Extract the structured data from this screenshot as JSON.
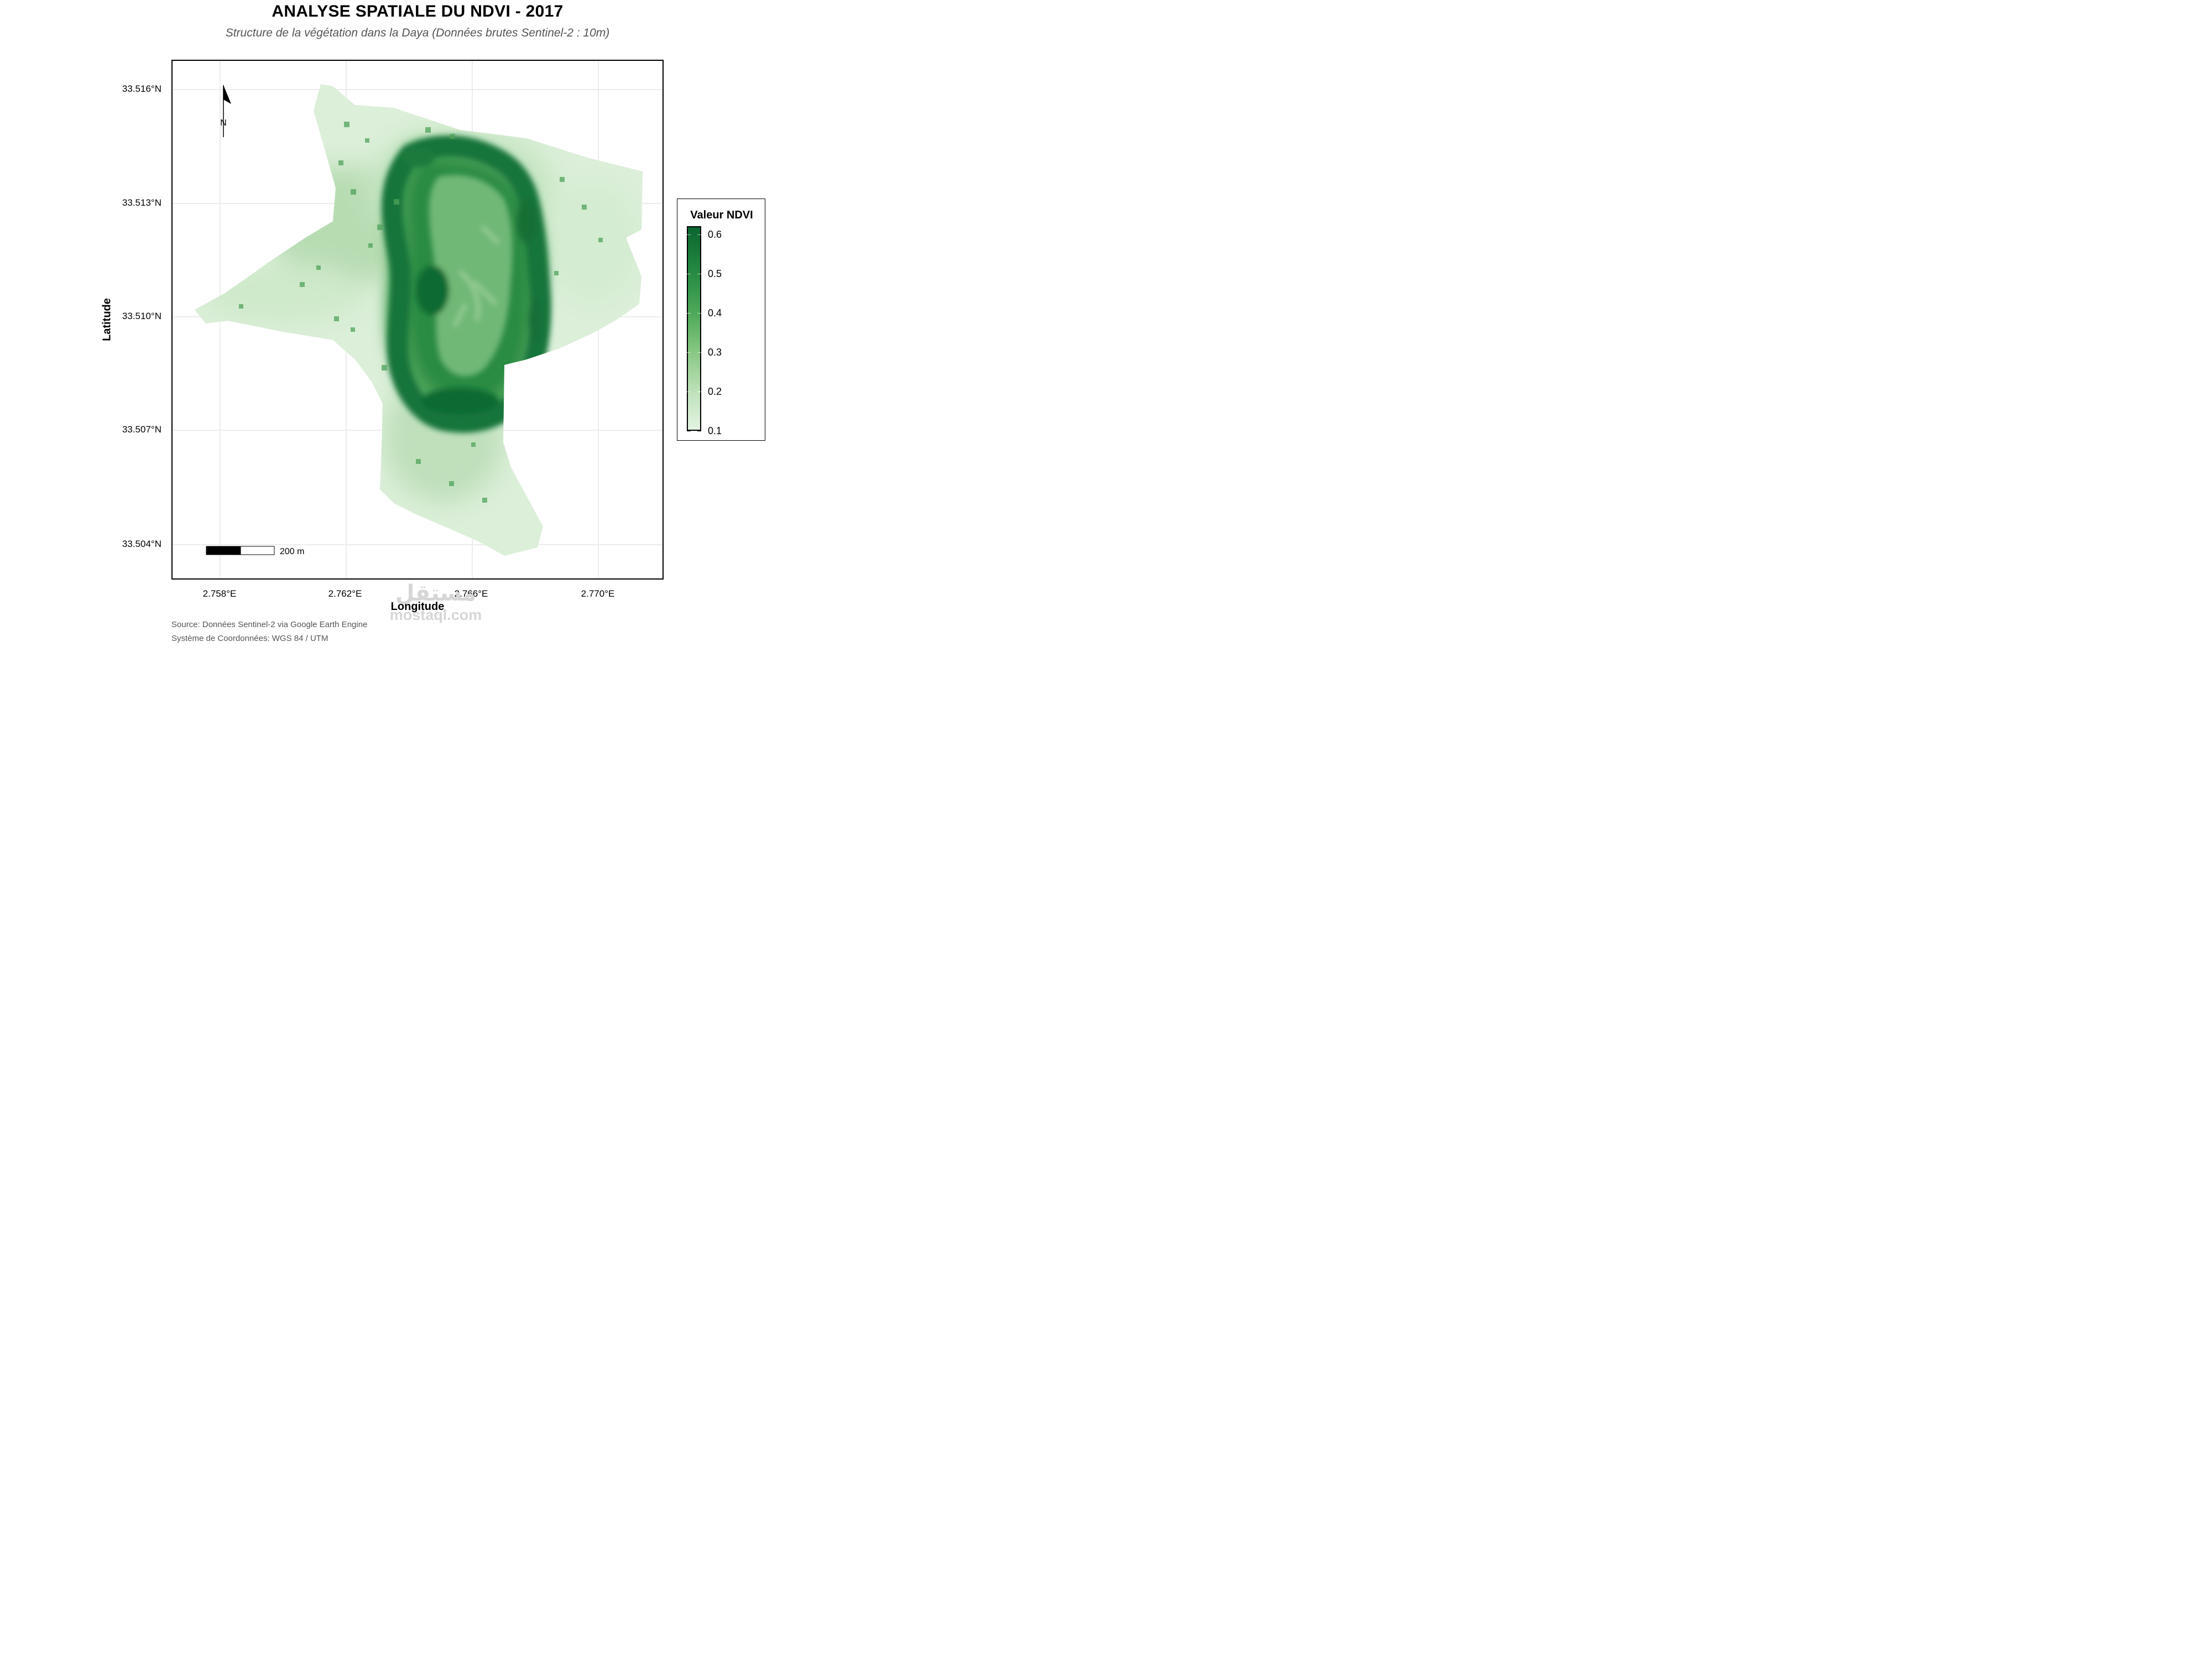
{
  "title": "ANALYSE SPATIALE DU NDVI - 2017",
  "subtitle": "Structure de la végétation dans la Daya (Données brutes Sentinel-2 : 10m)",
  "axes": {
    "xlabel": "Longitude",
    "ylabel": "Latitude",
    "x_ticks": [
      "2.758°E",
      "2.762°E",
      "2.766°E",
      "2.770°E"
    ],
    "y_ticks": [
      "33.516°N",
      "33.513°N",
      "33.510°N",
      "33.507°N",
      "33.504°N"
    ]
  },
  "north_arrow": {
    "label": "N"
  },
  "scale_bar": {
    "label": "200 m"
  },
  "legend": {
    "title": "Valeur NDVI",
    "labels": [
      "0.6",
      "0.5",
      "0.4",
      "0.3",
      "0.2",
      "0.1"
    ],
    "colors": {
      "high": "#0b6530",
      "mid": "#5ab061",
      "low": "#e4f4e3"
    }
  },
  "captions": {
    "source": "Source: Données Sentinel-2 via Google Earth Engine",
    "crs": "Système de Coordonnées: WGS 84 / UTM"
  },
  "watermark": {
    "text1": "مستقل",
    "text2": "mostaql.com"
  }
}
